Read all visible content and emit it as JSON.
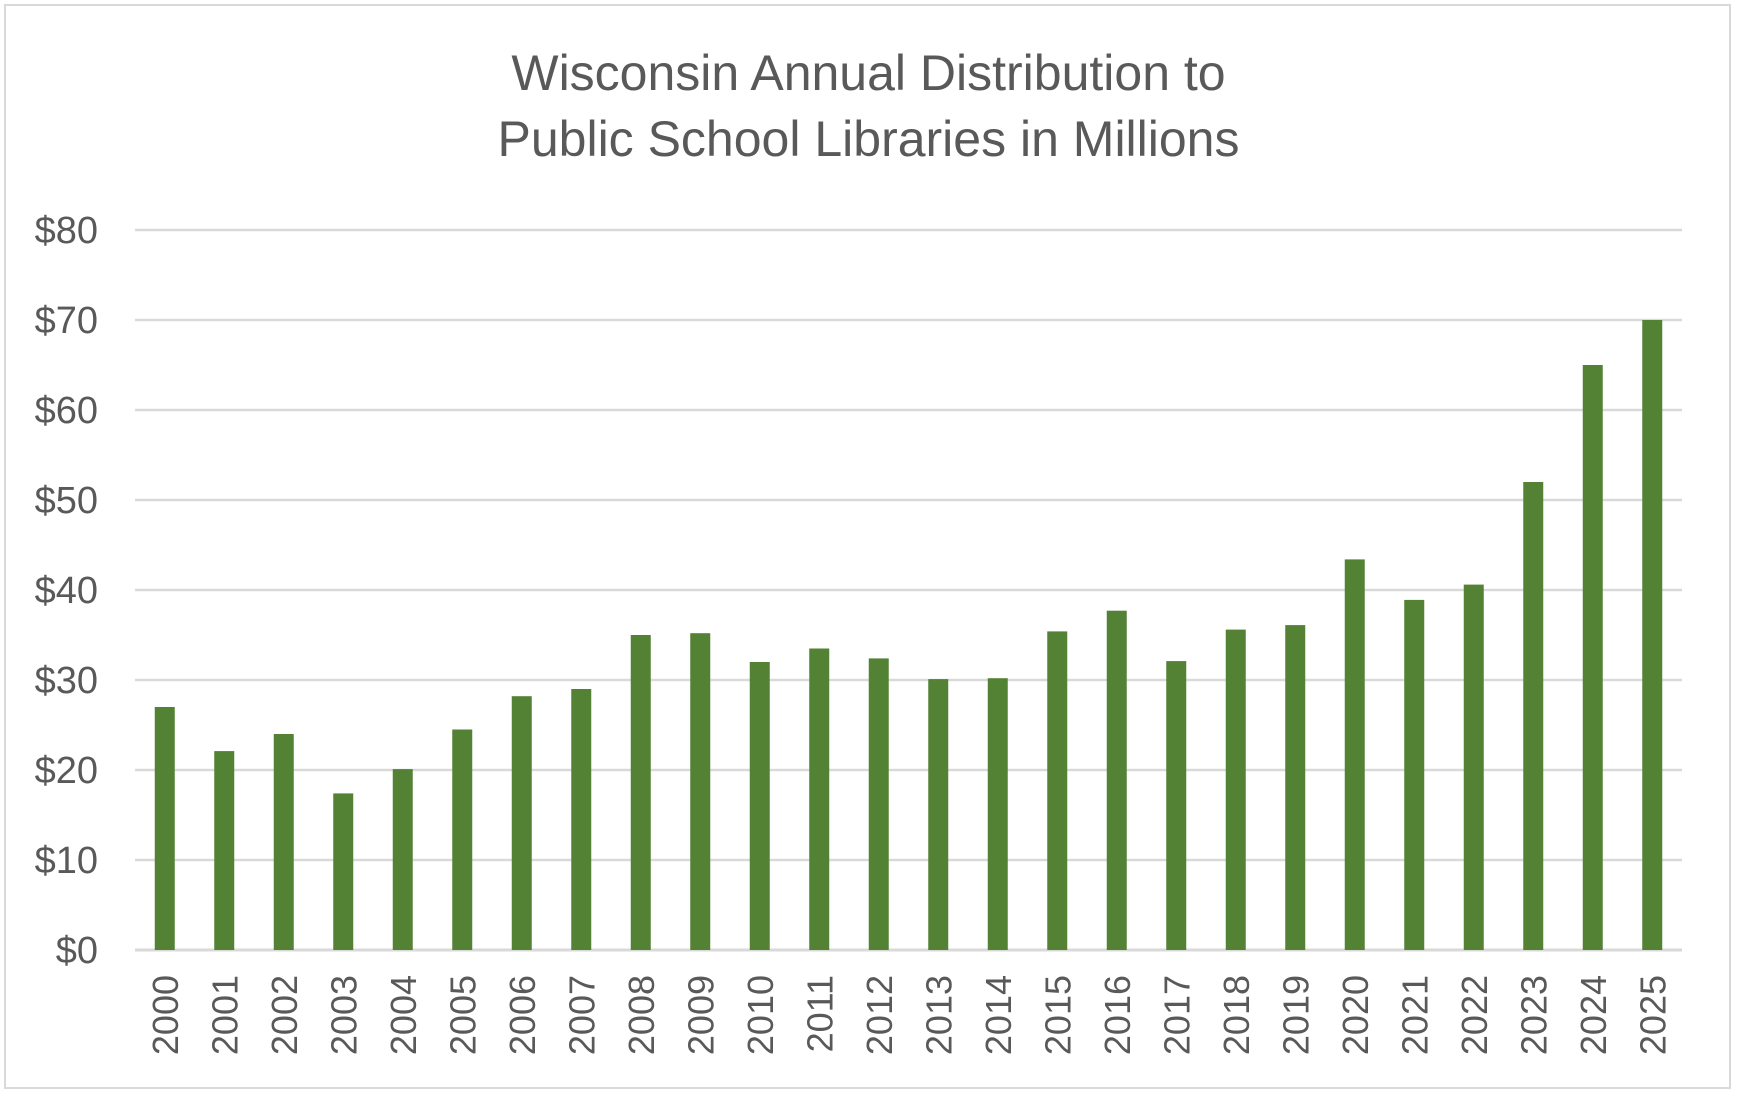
{
  "chart_data": {
    "type": "bar",
    "title_lines": [
      "Wisconsin Annual Distribution to",
      "Public School Libraries in Millions"
    ],
    "xlabel": "",
    "ylabel": "",
    "categories": [
      "2000",
      "2001",
      "2002",
      "2003",
      "2004",
      "2005",
      "2006",
      "2007",
      "2008",
      "2009",
      "2010",
      "2011",
      "2012",
      "2013",
      "2014",
      "2015",
      "2016",
      "2017",
      "2018",
      "2019",
      "2020",
      "2021",
      "2022",
      "2023",
      "2024",
      "2025"
    ],
    "values": [
      27,
      22.1,
      24,
      17.4,
      20.1,
      24.5,
      28.2,
      29,
      35,
      35.2,
      32,
      33.5,
      32.4,
      30.1,
      30.2,
      35.4,
      37.7,
      32.1,
      35.6,
      36.1,
      43.4,
      38.9,
      40.6,
      52,
      65,
      70
    ],
    "ylim": [
      0,
      80
    ],
    "ytick_values": [
      0,
      10,
      20,
      30,
      40,
      50,
      60,
      70,
      80
    ],
    "ytick_labels": [
      "$0",
      "$10",
      "$20",
      "$30",
      "$40",
      "$50",
      "$60",
      "$70",
      "$80"
    ],
    "grid": true,
    "legend": "none",
    "colors": {
      "bar": "#548235",
      "grid": "#d9d9d9",
      "text": "#595959"
    }
  }
}
